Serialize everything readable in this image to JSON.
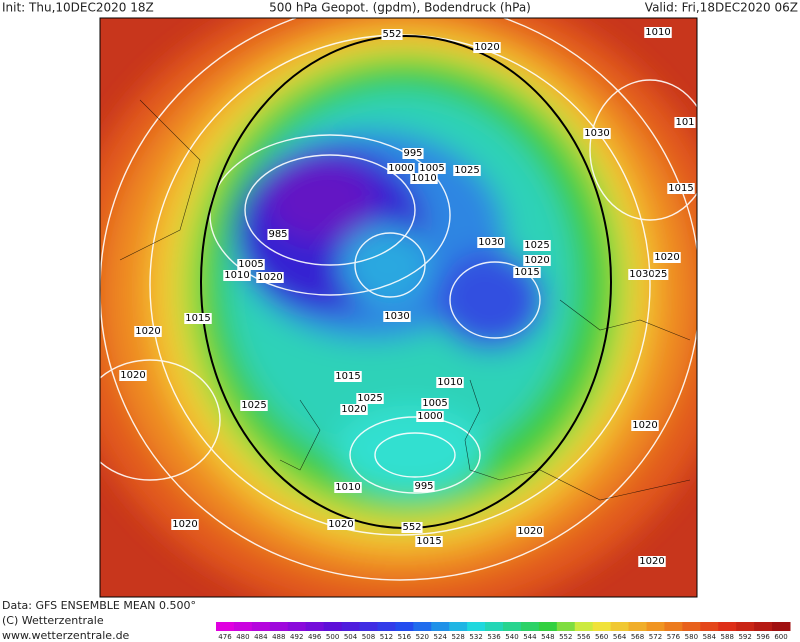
{
  "header": {
    "init": "Init: Thu,10DEC2020 18Z",
    "title": "500 hPa Geopot. (gpdm), Bodendruck (hPa)",
    "valid": "Valid: Fri,18DEC2020 06Z"
  },
  "footer": {
    "data": "Data: GFS ENSEMBLE MEAN 0.500°",
    "copyright": "(C) Wetterzentrale",
    "url": "www.wetterzentrale.de"
  },
  "contour_labels": [
    "552",
    "1020",
    "1010",
    "1030",
    "101",
    "995",
    "1000",
    "1005",
    "1010",
    "1025",
    "1015",
    "985",
    "1030",
    "1025",
    "1020",
    "1015",
    "1005",
    "1010",
    "1020",
    "1020",
    "1030",
    "25",
    "1020",
    "1015",
    "1030",
    "1020",
    "1015",
    "1010",
    "1025",
    "1020",
    "1005",
    "1000",
    "1025",
    "1020",
    "1010",
    "995",
    "1020",
    "1020",
    "552",
    "1015",
    "1020",
    "1020"
  ],
  "colorbar": {
    "ticks": [
      476,
      480,
      484,
      488,
      492,
      496,
      500,
      504,
      508,
      512,
      516,
      520,
      524,
      528,
      532,
      536,
      540,
      544,
      548,
      552,
      556,
      560,
      564,
      568,
      572,
      576,
      580,
      584,
      588,
      592,
      596,
      600
    ]
  }
}
